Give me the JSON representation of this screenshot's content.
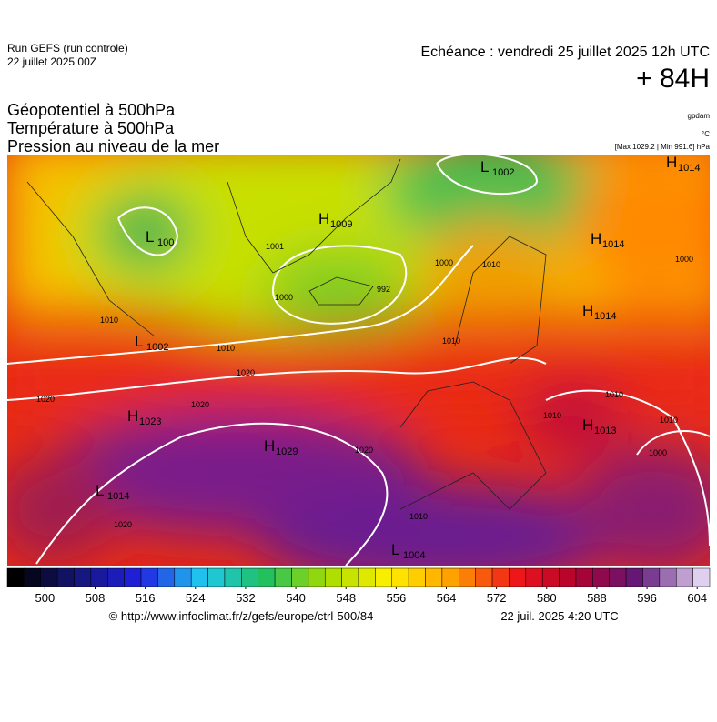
{
  "header": {
    "run": "Run GEFS (run controle)",
    "run_date": "22 juillet 2025 00Z",
    "valid": "Echéance : vendredi 25 juillet 2025 12h UTC",
    "lead": "+ 84H",
    "title_1": "Géopotentiel à 500hPa",
    "title_2": "Température à 500hPa",
    "title_3": "Pression au niveau de la mer",
    "unit_1": "gpdam",
    "unit_2": "°C",
    "unit_3": "[Max 1029.2 | Min 991.6] hPa"
  },
  "map": {
    "centers": [
      {
        "letter": "L",
        "value": "1002"
      },
      {
        "letter": "H",
        "value": "1014"
      },
      {
        "letter": "L",
        "value": "100"
      },
      {
        "letter": "H",
        "value": "1009"
      },
      {
        "letter": "H",
        "value": "1014"
      },
      {
        "letter": "H",
        "value": "1014"
      },
      {
        "letter": "L",
        "value": "1002"
      },
      {
        "letter": "H",
        "value": "1023"
      },
      {
        "letter": "H",
        "value": "1029"
      },
      {
        "letter": "H",
        "value": "1013"
      },
      {
        "letter": "L",
        "value": "1014"
      },
      {
        "letter": "L",
        "value": "1004"
      }
    ],
    "isobar_labels": [
      1001,
      992,
      1000,
      1000,
      1010,
      1010,
      1010,
      1020,
      1020,
      1020,
      1020,
      1020,
      1010,
      1010,
      1010,
      1010,
      1000,
      1000,
      1010
    ]
  },
  "colorbar": {
    "range": [
      494,
      606
    ],
    "ticks": [
      500,
      508,
      516,
      524,
      532,
      540,
      548,
      556,
      564,
      572,
      580,
      588,
      596,
      604
    ],
    "palette": [
      "#000000",
      "#16167a",
      "#2020e0",
      "#20c8f0",
      "#20c060",
      "#a8dc00",
      "#fff000",
      "#ffa000",
      "#f01818",
      "#b00030",
      "#60187a",
      "#e0d0f0"
    ]
  },
  "footer": {
    "source": "© http://www.infoclimat.fr/z/gefs/europe/ctrl-500/84",
    "issued": "22 juil. 2025  4:20 UTC"
  }
}
